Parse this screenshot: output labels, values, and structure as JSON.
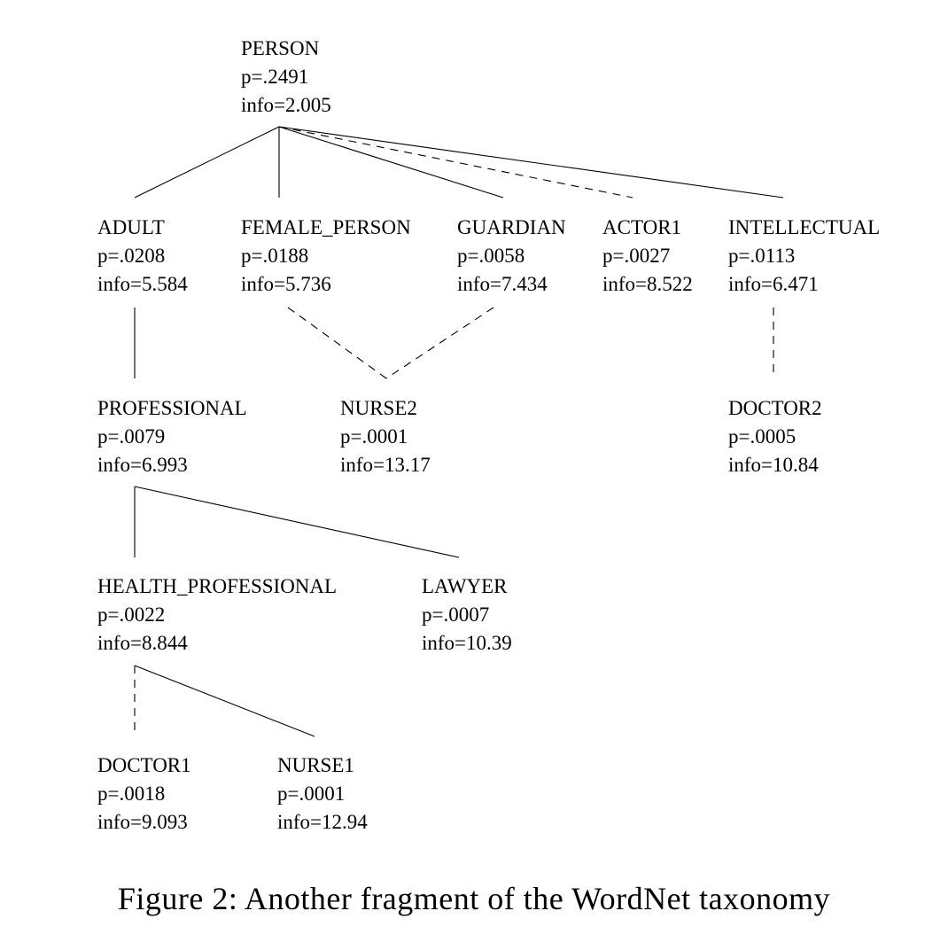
{
  "nodes": {
    "person": {
      "name": "PERSON",
      "p": "p=.2491",
      "info": "info=2.005"
    },
    "adult": {
      "name": "ADULT",
      "p": "p=.0208",
      "info": "info=5.584"
    },
    "female_person": {
      "name": "FEMALE_PERSON",
      "p": "p=.0188",
      "info": "info=5.736"
    },
    "guardian": {
      "name": "GUARDIAN",
      "p": "p=.0058",
      "info": "info=7.434"
    },
    "actor1": {
      "name": "ACTOR1",
      "p": "p=.0027",
      "info": "info=8.522"
    },
    "intellectual": {
      "name": "INTELLECTUAL",
      "p": "p=.0113",
      "info": "info=6.471"
    },
    "professional": {
      "name": "PROFESSIONAL",
      "p": "p=.0079",
      "info": "info=6.993"
    },
    "nurse2": {
      "name": "NURSE2",
      "p": "p=.0001",
      "info": "info=13.17"
    },
    "doctor2": {
      "name": "DOCTOR2",
      "p": "p=.0005",
      "info": "info=10.84"
    },
    "health_professional": {
      "name": "HEALTH_PROFESSIONAL",
      "p": "p=.0022",
      "info": "info=8.844"
    },
    "lawyer": {
      "name": "LAWYER",
      "p": "p=.0007",
      "info": "info=10.39"
    },
    "doctor1": {
      "name": "DOCTOR1",
      "p": "p=.0018",
      "info": "info=9.093"
    },
    "nurse1": {
      "name": "NURSE1",
      "p": "p=.0001",
      "info": "info=12.94"
    }
  },
  "edges": [
    {
      "from": "person",
      "to": "adult",
      "style": "solid"
    },
    {
      "from": "person",
      "to": "female_person",
      "style": "solid"
    },
    {
      "from": "person",
      "to": "guardian",
      "style": "solid"
    },
    {
      "from": "person",
      "to": "actor1",
      "style": "dashed"
    },
    {
      "from": "person",
      "to": "intellectual",
      "style": "solid"
    },
    {
      "from": "adult",
      "to": "professional",
      "style": "solid"
    },
    {
      "from": "female_person",
      "to": "nurse2",
      "style": "dashed"
    },
    {
      "from": "guardian",
      "to": "nurse2",
      "style": "dashed"
    },
    {
      "from": "intellectual",
      "to": "doctor2",
      "style": "dashed"
    },
    {
      "from": "professional",
      "to": "health_professional",
      "style": "solid"
    },
    {
      "from": "professional",
      "to": "lawyer",
      "style": "solid"
    },
    {
      "from": "health_professional",
      "to": "doctor1",
      "style": "dashed"
    },
    {
      "from": "health_professional",
      "to": "nurse1",
      "style": "solid"
    }
  ],
  "caption": "Figure 2: Another fragment of the WordNet taxonomy"
}
